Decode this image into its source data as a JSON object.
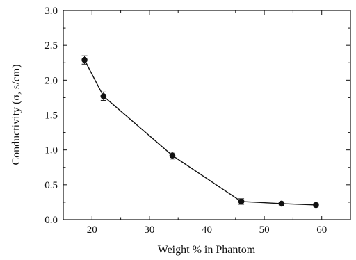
{
  "chart_data": {
    "type": "line",
    "xlabel": "Weight % in Phantom",
    "ylabel": "Conductivity (σ, s/cm)",
    "xlim": [
      15,
      65
    ],
    "ylim": [
      0.0,
      3.0
    ],
    "xticks": [
      20,
      30,
      40,
      50,
      60
    ],
    "xtick_labels": [
      "20",
      "30",
      "40",
      "50",
      "60"
    ],
    "yticks": [
      0.0,
      0.5,
      1.0,
      1.5,
      2.0,
      2.5,
      3.0
    ],
    "ytick_labels": [
      "0.0",
      "0.5",
      "1.0",
      "1.5",
      "2.0",
      "2.5",
      "3.0"
    ],
    "grid": false,
    "series": [
      {
        "x": [
          18.7,
          22.0,
          34.0,
          46.0,
          53.0,
          59.0
        ],
        "y": [
          2.29,
          1.77,
          0.92,
          0.26,
          0.23,
          0.21
        ],
        "yerr": [
          0.06,
          0.06,
          0.05,
          0.04,
          0.02,
          0.02
        ],
        "marker": "filled-circle",
        "color": "#111111"
      }
    ]
  }
}
